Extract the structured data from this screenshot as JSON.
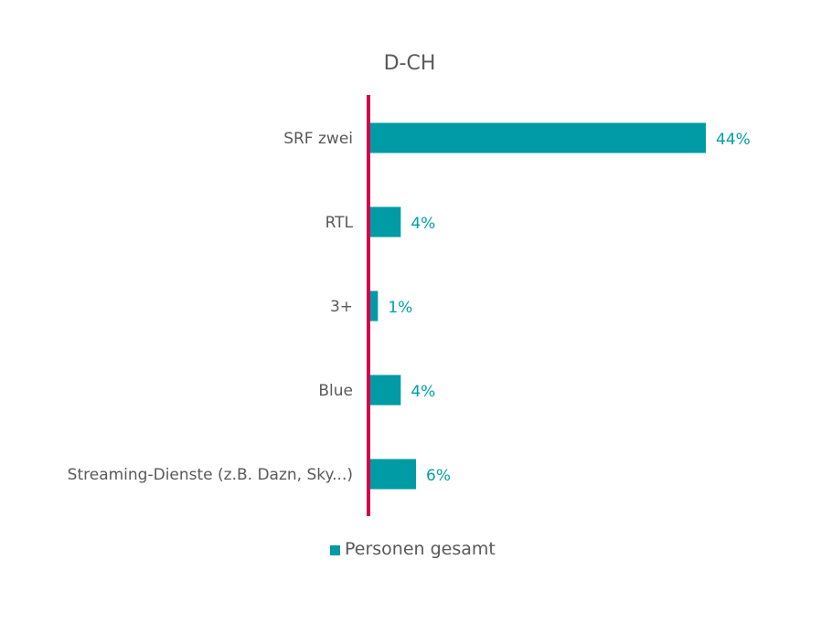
{
  "colors": {
    "bar": "#009ba4",
    "value_label": "#00a0a8",
    "axis": "#d4004e",
    "text": "#595959"
  },
  "chart_data": {
    "type": "bar",
    "orientation": "horizontal",
    "title": "D-CH",
    "categories": [
      "SRF zwei",
      "RTL",
      "3+",
      "Blue",
      "Streaming-Dienste (z.B. Dazn, Sky...)"
    ],
    "series": [
      {
        "name": "Personen gesamt",
        "values": [
          44,
          4,
          1,
          4,
          6
        ],
        "labels": [
          "44%",
          "4%",
          "1%",
          "4%",
          "6%"
        ]
      }
    ],
    "xlim": [
      0,
      44
    ],
    "grid": false,
    "legend": "bottom"
  }
}
